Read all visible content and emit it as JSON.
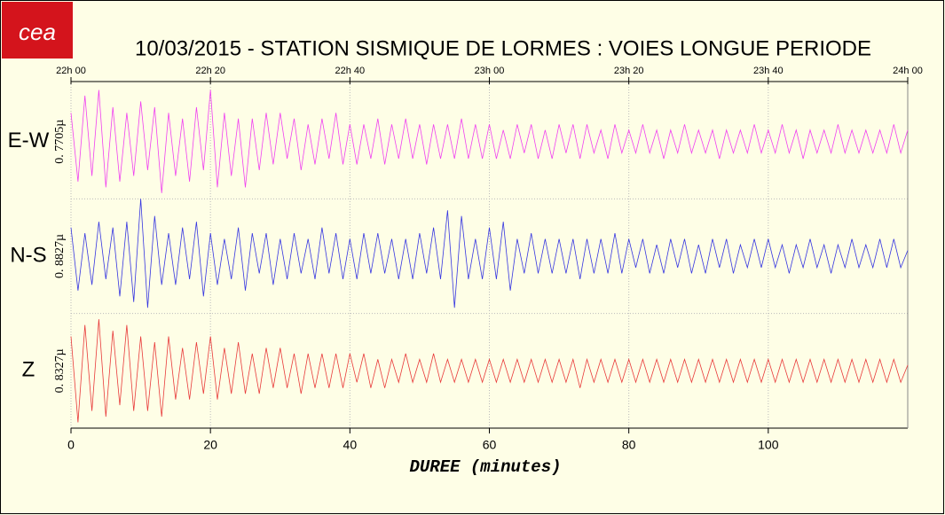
{
  "logo": "cea",
  "chart_data": {
    "type": "seismogram",
    "title": "10/03/2015  -  STATION SISMIQUE DE LORMES : VOIES LONGUE PERIODE",
    "x_label": "DUREE (minutes)",
    "xlim": [
      0,
      120
    ],
    "xticks": [
      0,
      20,
      40,
      60,
      80,
      100
    ],
    "top_xticks": [
      {
        "value": 0,
        "label": "22h 00"
      },
      {
        "value": 20,
        "label": "22h 20"
      },
      {
        "value": 40,
        "label": "22h 40"
      },
      {
        "value": 60,
        "label": "23h 00"
      },
      {
        "value": 80,
        "label": "23h 20"
      },
      {
        "value": 100,
        "label": "23h 40"
      },
      {
        "value": 120,
        "label": "24h 00"
      }
    ],
    "ylim": [
      -1,
      1
    ],
    "grid": true,
    "x": [
      0,
      1,
      2,
      3,
      4,
      5,
      6,
      7,
      8,
      9,
      10,
      11,
      12,
      13,
      14,
      15,
      16,
      17,
      18,
      19,
      20,
      21,
      22,
      23,
      24,
      25,
      26,
      27,
      28,
      29,
      30,
      31,
      32,
      33,
      34,
      35,
      36,
      37,
      38,
      39,
      40,
      41,
      42,
      43,
      44,
      45,
      46,
      47,
      48,
      49,
      50,
      51,
      52,
      53,
      54,
      55,
      56,
      57,
      58,
      59,
      60,
      61,
      62,
      63,
      64,
      65,
      66,
      67,
      68,
      69,
      70,
      71,
      72,
      73,
      74,
      75,
      76,
      77,
      78,
      79,
      80,
      81,
      82,
      83,
      84,
      85,
      86,
      87,
      88,
      89,
      90,
      91,
      92,
      93,
      94,
      95,
      96,
      97,
      98,
      99,
      100,
      101,
      102,
      103,
      104,
      105,
      106,
      107,
      108,
      109,
      110,
      111,
      112,
      113,
      114,
      115,
      116,
      117,
      118,
      119,
      120
    ],
    "series": [
      {
        "name": "E-W",
        "scale_label": "0. 7705µ",
        "color": "#f040f0",
        "values": [
          0.5,
          -0.7,
          0.8,
          -0.6,
          0.9,
          -0.8,
          0.6,
          -0.7,
          0.5,
          -0.6,
          0.7,
          -0.5,
          0.6,
          -0.9,
          0.5,
          -0.6,
          0.4,
          -0.7,
          0.6,
          -0.5,
          0.9,
          -0.8,
          0.5,
          -0.6,
          0.4,
          -0.8,
          0.4,
          -0.5,
          0.5,
          -0.4,
          0.5,
          -0.3,
          0.4,
          -0.5,
          0.3,
          -0.4,
          0.4,
          -0.3,
          0.5,
          -0.4,
          0.3,
          -0.4,
          0.3,
          -0.3,
          0.4,
          -0.4,
          0.3,
          -0.3,
          0.4,
          -0.3,
          0.3,
          -0.4,
          0.3,
          -0.3,
          0.3,
          -0.3,
          0.4,
          -0.3,
          0.3,
          -0.3,
          0.3,
          -0.3,
          0.2,
          -0.3,
          0.3,
          -0.2,
          0.3,
          -0.3,
          0.2,
          -0.3,
          0.3,
          -0.2,
          0.3,
          -0.3,
          0.3,
          -0.2,
          0.2,
          -0.3,
          0.3,
          -0.2,
          0.2,
          -0.2,
          0.3,
          -0.2,
          0.2,
          -0.3,
          0.2,
          -0.2,
          0.3,
          -0.2,
          0.2,
          -0.2,
          0.2,
          -0.3,
          0.2,
          -0.2,
          0.2,
          -0.2,
          0.3,
          -0.2,
          0.2,
          -0.2,
          0.3,
          -0.2,
          0.2,
          -0.3,
          0.2,
          -0.2,
          0.2,
          -0.2,
          0.3,
          -0.2,
          0.2,
          -0.2,
          0.2,
          -0.2,
          0.2,
          -0.2,
          0.3,
          -0.2,
          0.2
        ]
      },
      {
        "name": "N-S",
        "scale_label": "0. 8827µ",
        "color": "#3636e0",
        "values": [
          0.5,
          -0.6,
          0.4,
          -0.5,
          0.6,
          -0.4,
          0.5,
          -0.7,
          0.6,
          -0.8,
          1.0,
          -0.9,
          0.7,
          -0.5,
          0.4,
          -0.5,
          0.5,
          -0.4,
          0.6,
          -0.7,
          0.4,
          -0.5,
          0.3,
          -0.4,
          0.5,
          -0.6,
          0.4,
          -0.3,
          0.4,
          -0.5,
          0.3,
          -0.4,
          0.4,
          -0.3,
          0.3,
          -0.4,
          0.5,
          -0.3,
          0.4,
          -0.4,
          0.3,
          -0.4,
          0.4,
          -0.3,
          0.4,
          -0.3,
          0.3,
          -0.4,
          0.3,
          -0.4,
          0.4,
          -0.3,
          0.5,
          -0.4,
          0.8,
          -0.9,
          0.7,
          -0.4,
          0.3,
          -0.4,
          0.5,
          -0.4,
          0.6,
          -0.6,
          0.3,
          -0.3,
          0.4,
          -0.3,
          0.3,
          -0.3,
          0.3,
          -0.3,
          0.3,
          -0.4,
          0.3,
          -0.3,
          0.3,
          -0.3,
          0.4,
          -0.3,
          0.3,
          -0.2,
          0.3,
          -0.3,
          0.2,
          -0.3,
          0.3,
          -0.2,
          0.3,
          -0.3,
          0.2,
          -0.3,
          0.3,
          -0.2,
          0.3,
          -0.3,
          0.2,
          -0.2,
          0.3,
          -0.2,
          0.3,
          -0.2,
          0.2,
          -0.3,
          0.2,
          -0.2,
          0.3,
          -0.2,
          0.2,
          -0.3,
          0.2,
          -0.2,
          0.3,
          -0.2,
          0.2,
          -0.2,
          0.3,
          -0.2,
          0.3,
          -0.2,
          0.1
        ]
      },
      {
        "name": "Z",
        "scale_label": "0. 8327µ",
        "color": "#e83a3a",
        "values": [
          0.6,
          -0.9,
          0.8,
          -0.7,
          0.9,
          -0.8,
          0.7,
          -0.6,
          0.8,
          -0.7,
          0.6,
          -0.7,
          0.5,
          -0.8,
          0.6,
          -0.5,
          0.4,
          -0.5,
          0.5,
          -0.4,
          0.6,
          -0.5,
          0.4,
          -0.4,
          0.5,
          -0.4,
          0.3,
          -0.4,
          0.4,
          -0.3,
          0.4,
          -0.3,
          0.3,
          -0.4,
          0.3,
          -0.3,
          0.3,
          -0.3,
          0.3,
          -0.3,
          0.3,
          -0.2,
          0.3,
          -0.3,
          0.2,
          -0.3,
          0.2,
          -0.2,
          0.3,
          -0.2,
          0.2,
          -0.2,
          0.3,
          -0.2,
          0.2,
          -0.2,
          0.2,
          -0.2,
          0.2,
          -0.2,
          0.2,
          -0.2,
          0.2,
          -0.2,
          0.2,
          -0.2,
          0.2,
          -0.2,
          0.2,
          -0.2,
          0.2,
          -0.2,
          0.2,
          -0.3,
          0.2,
          -0.2,
          0.2,
          -0.2,
          0.2,
          -0.2,
          0.2,
          -0.2,
          0.2,
          -0.2,
          0.2,
          -0.2,
          0.2,
          -0.2,
          0.2,
          -0.2,
          0.2,
          -0.2,
          0.2,
          -0.2,
          0.2,
          -0.2,
          0.2,
          -0.2,
          0.2,
          -0.2,
          0.2,
          -0.2,
          0.2,
          -0.2,
          0.2,
          -0.2,
          0.2,
          -0.2,
          0.2,
          -0.2,
          0.2,
          -0.2,
          0.2,
          -0.2,
          0.2,
          -0.2,
          0.2,
          -0.2,
          0.2,
          -0.2,
          0.1
        ]
      }
    ]
  }
}
